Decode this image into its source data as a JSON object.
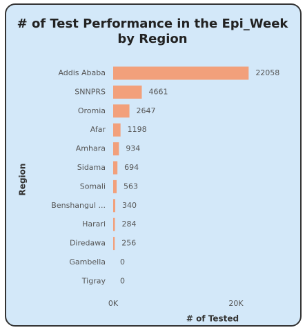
{
  "chart_data": {
    "type": "bar",
    "orientation": "horizontal",
    "title": "# of Test Performance in the Epi_Week by Region",
    "x_label": "# of Tested",
    "y_label": "Region",
    "categories": [
      "Addis Ababa",
      "SNNPRS",
      "Oromia",
      "Afar",
      "Amhara",
      "Sidama",
      "Somali",
      "Benshangul ...",
      "Harari",
      "Diredawa",
      "Gambella",
      "Tigray"
    ],
    "values": [
      22058,
      4661,
      2647,
      1198,
      934,
      694,
      563,
      340,
      284,
      256,
      0,
      0
    ],
    "color": "#f2a07b",
    "xlim": [
      0,
      25000
    ],
    "xticks": [
      {
        "value": 0,
        "label": "0K"
      },
      {
        "value": 20000,
        "label": "20K"
      }
    ],
    "grid": false
  }
}
